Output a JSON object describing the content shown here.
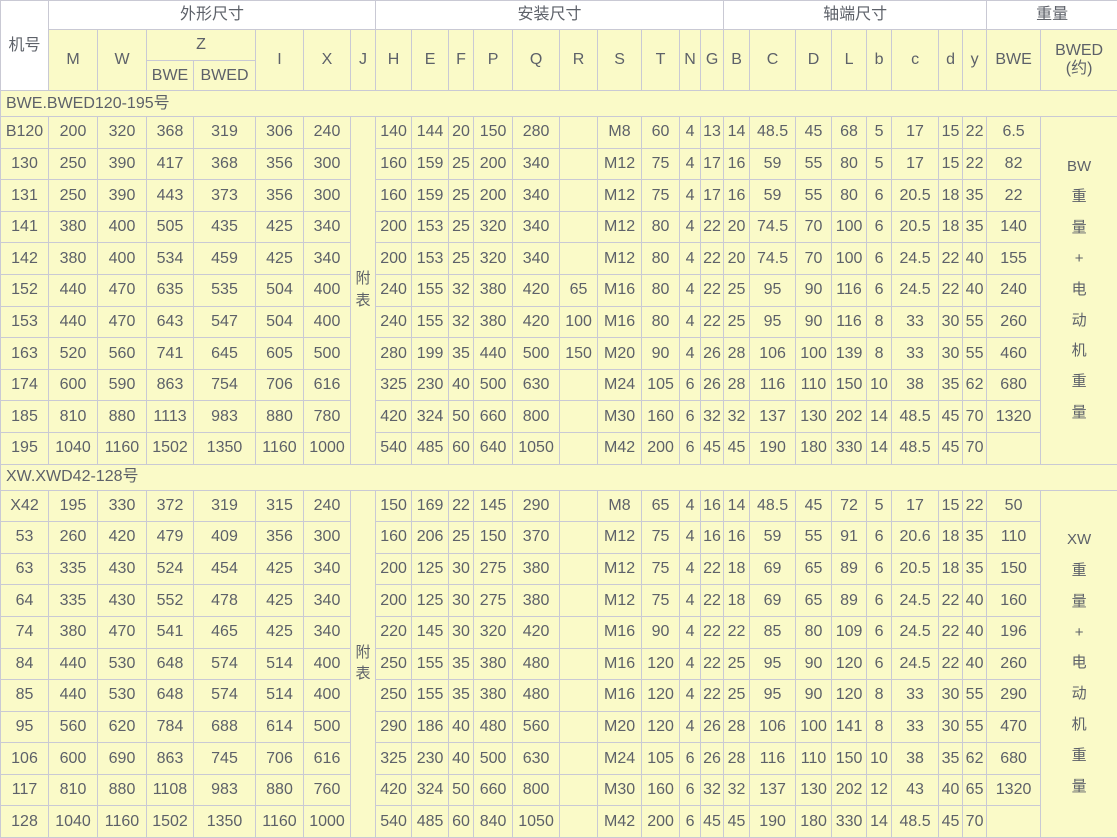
{
  "colors": {
    "cell_bg": "#FAFAC8",
    "header_group_bg": "#FFFFFF",
    "border": "#C9C9D4",
    "text": "#5D6169"
  },
  "header": {
    "model": "机号",
    "groups": {
      "outline": "外形尺寸",
      "install": "安装尺寸",
      "shaft": "轴端尺寸",
      "weight": "重量"
    },
    "cols": [
      "M",
      "W",
      "Z",
      "I",
      "X",
      "J",
      "H",
      "E",
      "F",
      "P",
      "Q",
      "R",
      "S",
      "T",
      "N",
      "G",
      "B",
      "C",
      "D",
      "L",
      "b",
      "c",
      "d",
      "y",
      "BWE",
      "BWED\n(约)"
    ],
    "z_sub": [
      "BWE",
      "BWED"
    ]
  },
  "sections": [
    {
      "label": "BWE.BWED120-195号",
      "j_note": [
        "附",
        "表"
      ],
      "weight_note": [
        "BW",
        "重",
        "量",
        "+",
        "电",
        "动",
        "机",
        "重",
        "量"
      ],
      "rows": [
        {
          "model": "B120",
          "values": [
            "200",
            "320",
            "368",
            "319",
            "306",
            "240",
            "140",
            "144",
            "20",
            "150",
            "280",
            "",
            "M8",
            "60",
            "4",
            "13",
            "14",
            "48.5",
            "45",
            "68",
            "5",
            "17",
            "15",
            "22",
            "6.5"
          ]
        },
        {
          "model": "130",
          "values": [
            "250",
            "390",
            "417",
            "368",
            "356",
            "300",
            "160",
            "159",
            "25",
            "200",
            "340",
            "",
            "M12",
            "75",
            "4",
            "17",
            "16",
            "59",
            "55",
            "80",
            "5",
            "17",
            "15",
            "22",
            "82"
          ]
        },
        {
          "model": "131",
          "values": [
            "250",
            "390",
            "443",
            "373",
            "356",
            "300",
            "160",
            "159",
            "25",
            "200",
            "340",
            "",
            "M12",
            "75",
            "4",
            "17",
            "16",
            "59",
            "55",
            "80",
            "6",
            "20.5",
            "18",
            "35",
            "22"
          ]
        },
        {
          "model": "141",
          "values": [
            "380",
            "400",
            "505",
            "435",
            "425",
            "340",
            "200",
            "153",
            "25",
            "320",
            "340",
            "",
            "M12",
            "80",
            "4",
            "22",
            "20",
            "74.5",
            "70",
            "100",
            "6",
            "20.5",
            "18",
            "35",
            "140"
          ]
        },
        {
          "model": "142",
          "values": [
            "380",
            "400",
            "534",
            "459",
            "425",
            "340",
            "200",
            "153",
            "25",
            "320",
            "340",
            "",
            "M12",
            "80",
            "4",
            "22",
            "20",
            "74.5",
            "70",
            "100",
            "6",
            "24.5",
            "22",
            "40",
            "155"
          ]
        },
        {
          "model": "152",
          "values": [
            "440",
            "470",
            "635",
            "535",
            "504",
            "400",
            "240",
            "155",
            "32",
            "380",
            "420",
            "65",
            "M16",
            "80",
            "4",
            "22",
            "25",
            "95",
            "90",
            "116",
            "6",
            "24.5",
            "22",
            "40",
            "240"
          ]
        },
        {
          "model": "153",
          "values": [
            "440",
            "470",
            "643",
            "547",
            "504",
            "400",
            "240",
            "155",
            "32",
            "380",
            "420",
            "100",
            "M16",
            "80",
            "4",
            "22",
            "25",
            "95",
            "90",
            "116",
            "8",
            "33",
            "30",
            "55",
            "260"
          ]
        },
        {
          "model": "163",
          "values": [
            "520",
            "560",
            "741",
            "645",
            "605",
            "500",
            "280",
            "199",
            "35",
            "440",
            "500",
            "150",
            "M20",
            "90",
            "4",
            "26",
            "28",
            "106",
            "100",
            "139",
            "8",
            "33",
            "30",
            "55",
            "460"
          ]
        },
        {
          "model": "174",
          "values": [
            "600",
            "590",
            "863",
            "754",
            "706",
            "616",
            "325",
            "230",
            "40",
            "500",
            "630",
            "",
            "M24",
            "105",
            "6",
            "26",
            "28",
            "116",
            "110",
            "150",
            "10",
            "38",
            "35",
            "62",
            "680"
          ]
        },
        {
          "model": "185",
          "values": [
            "810",
            "880",
            "1113",
            "983",
            "880",
            "780",
            "420",
            "324",
            "50",
            "660",
            "800",
            "",
            "M30",
            "160",
            "6",
            "32",
            "32",
            "137",
            "130",
            "202",
            "14",
            "48.5",
            "45",
            "70",
            "1320"
          ]
        },
        {
          "model": "195",
          "values": [
            "1040",
            "1160",
            "1502",
            "1350",
            "1160",
            "1000",
            "540",
            "485",
            "60",
            "640",
            "1050",
            "",
            "M42",
            "200",
            "6",
            "45",
            "45",
            "190",
            "180",
            "330",
            "14",
            "48.5",
            "45",
            "70",
            ""
          ]
        }
      ]
    },
    {
      "label": "XW.XWD42-128号",
      "j_note": [
        "附",
        "表"
      ],
      "weight_note": [
        "XW",
        "重",
        "量",
        "+",
        "电",
        "动",
        "机",
        "重",
        "量"
      ],
      "rows": [
        {
          "model": "X42",
          "values": [
            "195",
            "330",
            "372",
            "319",
            "315",
            "240",
            "150",
            "169",
            "22",
            "145",
            "290",
            "",
            "M8",
            "65",
            "4",
            "16",
            "14",
            "48.5",
            "45",
            "72",
            "5",
            "17",
            "15",
            "22",
            "50"
          ]
        },
        {
          "model": "53",
          "values": [
            "260",
            "420",
            "479",
            "409",
            "356",
            "300",
            "160",
            "206",
            "25",
            "150",
            "370",
            "",
            "M12",
            "75",
            "4",
            "16",
            "16",
            "59",
            "55",
            "91",
            "6",
            "20.6",
            "18",
            "35",
            "110"
          ]
        },
        {
          "model": "63",
          "values": [
            "335",
            "430",
            "524",
            "454",
            "425",
            "340",
            "200",
            "125",
            "30",
            "275",
            "380",
            "",
            "M12",
            "75",
            "4",
            "22",
            "18",
            "69",
            "65",
            "89",
            "6",
            "20.5",
            "18",
            "35",
            "150"
          ]
        },
        {
          "model": "64",
          "values": [
            "335",
            "430",
            "552",
            "478",
            "425",
            "340",
            "200",
            "125",
            "30",
            "275",
            "380",
            "",
            "M12",
            "75",
            "4",
            "22",
            "18",
            "69",
            "65",
            "89",
            "6",
            "24.5",
            "22",
            "40",
            "160"
          ]
        },
        {
          "model": "74",
          "values": [
            "380",
            "470",
            "541",
            "465",
            "425",
            "340",
            "220",
            "145",
            "30",
            "320",
            "420",
            "",
            "M16",
            "90",
            "4",
            "22",
            "22",
            "85",
            "80",
            "109",
            "6",
            "24.5",
            "22",
            "40",
            "196"
          ]
        },
        {
          "model": "84",
          "values": [
            "440",
            "530",
            "648",
            "574",
            "514",
            "400",
            "250",
            "155",
            "35",
            "380",
            "480",
            "",
            "M16",
            "120",
            "4",
            "22",
            "25",
            "95",
            "90",
            "120",
            "6",
            "24.5",
            "22",
            "40",
            "260"
          ]
        },
        {
          "model": "85",
          "values": [
            "440",
            "530",
            "648",
            "574",
            "514",
            "400",
            "250",
            "155",
            "35",
            "380",
            "480",
            "",
            "M16",
            "120",
            "4",
            "22",
            "25",
            "95",
            "90",
            "120",
            "8",
            "33",
            "30",
            "55",
            "290"
          ]
        },
        {
          "model": "95",
          "values": [
            "560",
            "620",
            "784",
            "688",
            "614",
            "500",
            "290",
            "186",
            "40",
            "480",
            "560",
            "",
            "M20",
            "120",
            "4",
            "26",
            "28",
            "106",
            "100",
            "141",
            "8",
            "33",
            "30",
            "55",
            "470"
          ]
        },
        {
          "model": "106",
          "values": [
            "600",
            "690",
            "863",
            "745",
            "706",
            "616",
            "325",
            "230",
            "40",
            "500",
            "630",
            "",
            "M24",
            "105",
            "6",
            "26",
            "28",
            "116",
            "110",
            "150",
            "10",
            "38",
            "35",
            "62",
            "680"
          ]
        },
        {
          "model": "117",
          "values": [
            "810",
            "880",
            "1108",
            "983",
            "880",
            "760",
            "420",
            "324",
            "50",
            "660",
            "800",
            "",
            "M30",
            "160",
            "6",
            "32",
            "32",
            "137",
            "130",
            "202",
            "12",
            "43",
            "40",
            "65",
            "1320"
          ]
        },
        {
          "model": "128",
          "values": [
            "1040",
            "1160",
            "1502",
            "1350",
            "1160",
            "1000",
            "540",
            "485",
            "60",
            "840",
            "1050",
            "",
            "M42",
            "200",
            "6",
            "45",
            "45",
            "190",
            "180",
            "330",
            "14",
            "48.5",
            "45",
            "70",
            ""
          ]
        }
      ]
    }
  ]
}
